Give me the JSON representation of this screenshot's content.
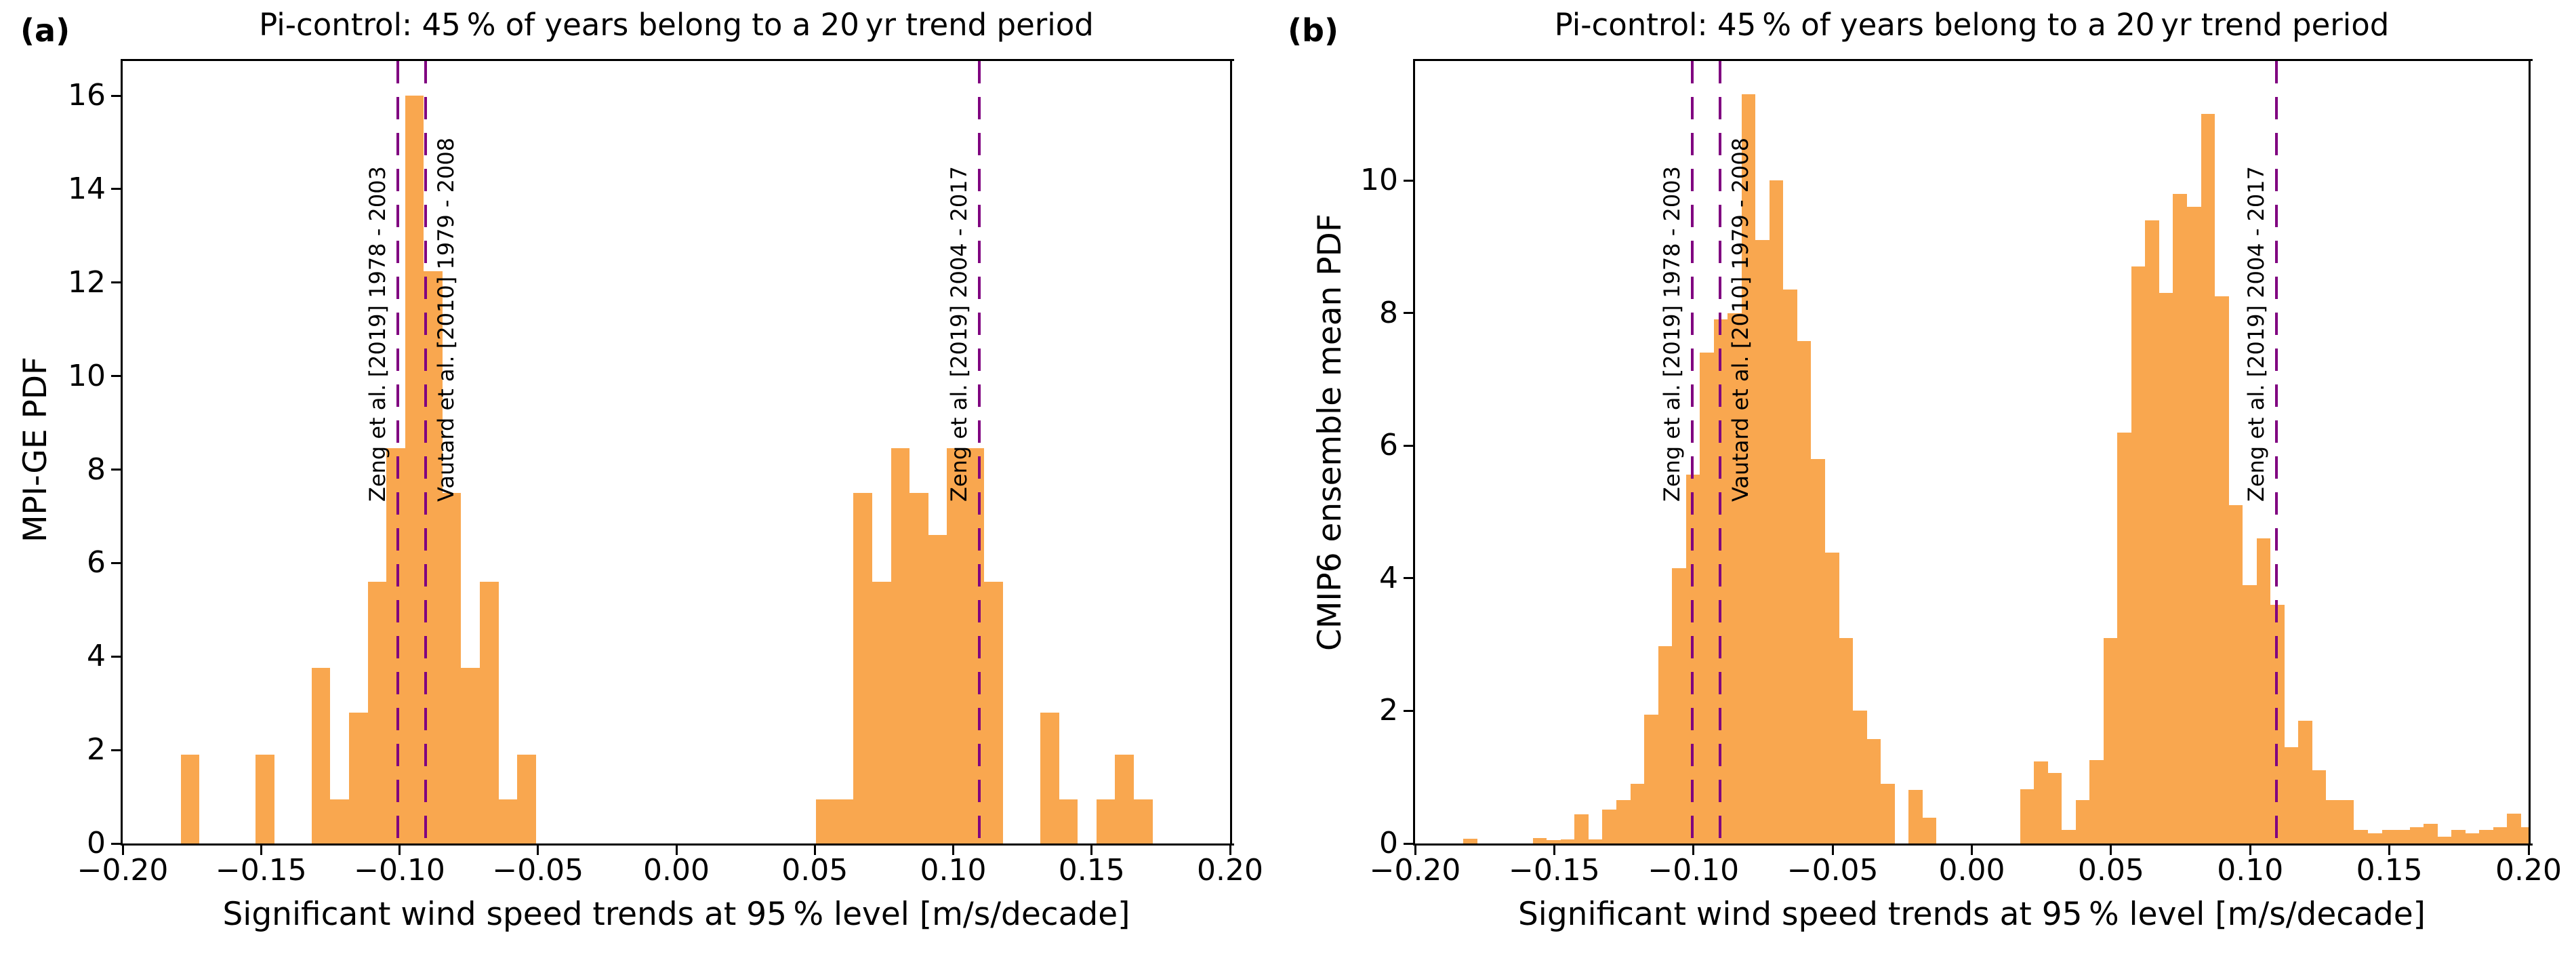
{
  "page": {
    "background": "#ffffff"
  },
  "colors": {
    "bar_fill": "#F9A74F",
    "vline": "#800080",
    "axis": "#000000",
    "text": "#000000"
  },
  "chart_data": [
    {
      "panel_label": "(a)",
      "type": "bar",
      "title": "Pi-control: 45 % of years belong to a 20 yr trend period",
      "xlabel": "Significant wind speed trends at 95 % level [m/s/decade]",
      "ylabel": "MPI-GE PDF",
      "xlim": [
        -0.2,
        0.2
      ],
      "ylim": [
        0,
        16.74
      ],
      "grid": false,
      "legend": null,
      "xticks": [
        -0.2,
        -0.15,
        -0.1,
        -0.05,
        0.0,
        0.05,
        0.1,
        0.15,
        0.2
      ],
      "xtick_labels": [
        "−0.20",
        "−0.15",
        "−0.10",
        "−0.05",
        "0.00",
        "0.05",
        "0.10",
        "0.15",
        "0.20"
      ],
      "yticks": [
        0,
        2,
        4,
        6,
        8,
        10,
        12,
        14,
        16
      ],
      "ytick_labels": [
        "0",
        "2",
        "4",
        "6",
        "8",
        "10",
        "12",
        "14",
        "16"
      ],
      "bin_width": 0.00675,
      "bars": [
        {
          "x": -0.179,
          "h": 1.9
        },
        {
          "x": -0.152,
          "h": 1.9
        },
        {
          "x": -0.13175,
          "h": 3.75
        },
        {
          "x": -0.125,
          "h": 0.95
        },
        {
          "x": -0.11825,
          "h": 2.8
        },
        {
          "x": -0.1115,
          "h": 5.6
        },
        {
          "x": -0.10475,
          "h": 8.45
        },
        {
          "x": -0.098,
          "h": 16.0
        },
        {
          "x": -0.09125,
          "h": 12.25
        },
        {
          "x": -0.0845,
          "h": 7.5
        },
        {
          "x": -0.07775,
          "h": 3.75
        },
        {
          "x": -0.071,
          "h": 5.6
        },
        {
          "x": -0.06425,
          "h": 0.95
        },
        {
          "x": -0.0575,
          "h": 1.9
        },
        {
          "x": 0.0505,
          "h": 0.95
        },
        {
          "x": 0.05725,
          "h": 0.95
        },
        {
          "x": 0.064,
          "h": 7.5
        },
        {
          "x": 0.07075,
          "h": 5.6
        },
        {
          "x": 0.0775,
          "h": 8.45
        },
        {
          "x": 0.08425,
          "h": 7.5
        },
        {
          "x": 0.091,
          "h": 6.6
        },
        {
          "x": 0.09775,
          "h": 8.45
        },
        {
          "x": 0.1045,
          "h": 8.45
        },
        {
          "x": 0.11125,
          "h": 5.6
        },
        {
          "x": 0.1315,
          "h": 2.8
        },
        {
          "x": 0.13825,
          "h": 0.95
        },
        {
          "x": 0.15175,
          "h": 0.95
        },
        {
          "x": 0.1585,
          "h": 1.9
        },
        {
          "x": 0.16525,
          "h": 0.95
        }
      ],
      "vlines": [
        {
          "x": -0.1005,
          "label": "Zeng et al. [2019] 1978 - 2003",
          "label_side": "left"
        },
        {
          "x": -0.0905,
          "label": "Vautard et al. [2010] 1979 - 2008",
          "label_side": "right"
        },
        {
          "x": 0.1095,
          "label": "Zeng et al. [2019] 2004 - 2017",
          "label_side": "left"
        }
      ]
    },
    {
      "panel_label": "(b)",
      "type": "bar",
      "title": "Pi-control: 45 % of years belong to a 20 yr trend period",
      "xlabel": "Significant wind speed trends at 95 % level [m/s/decade]",
      "ylabel": "CMIP6 ensemble mean PDF",
      "xlim": [
        -0.2,
        0.2
      ],
      "ylim": [
        0,
        11.8
      ],
      "grid": false,
      "legend": null,
      "xticks": [
        -0.2,
        -0.15,
        -0.1,
        -0.05,
        0.0,
        0.05,
        0.1,
        0.15,
        0.2
      ],
      "xtick_labels": [
        "−0.20",
        "−0.15",
        "−0.10",
        "−0.05",
        "0.00",
        "0.05",
        "0.10",
        "0.15",
        "0.20"
      ],
      "yticks": [
        0,
        2,
        4,
        6,
        8,
        10
      ],
      "ytick_labels": [
        "0",
        "2",
        "4",
        "6",
        "8",
        "10"
      ],
      "bin_width": 0.005,
      "bars": [
        {
          "x": -0.1827,
          "h": 0.07
        },
        {
          "x": -0.1577,
          "h": 0.08
        },
        {
          "x": -0.1527,
          "h": 0.05
        },
        {
          "x": -0.1477,
          "h": 0.06
        },
        {
          "x": -0.1427,
          "h": 0.44
        },
        {
          "x": -0.1377,
          "h": 0.06
        },
        {
          "x": -0.1327,
          "h": 0.51
        },
        {
          "x": -0.1277,
          "h": 0.65
        },
        {
          "x": -0.1227,
          "h": 0.9
        },
        {
          "x": -0.1177,
          "h": 1.94
        },
        {
          "x": -0.1127,
          "h": 2.98
        },
        {
          "x": -0.1077,
          "h": 4.15
        },
        {
          "x": -0.1027,
          "h": 5.56
        },
        {
          "x": -0.0977,
          "h": 7.4
        },
        {
          "x": -0.0927,
          "h": 7.9
        },
        {
          "x": -0.0877,
          "h": 8.0
        },
        {
          "x": -0.0827,
          "h": 11.3
        },
        {
          "x": -0.0777,
          "h": 9.1
        },
        {
          "x": -0.0727,
          "h": 10.0
        },
        {
          "x": -0.0677,
          "h": 8.35
        },
        {
          "x": -0.0627,
          "h": 7.58
        },
        {
          "x": -0.0577,
          "h": 5.8
        },
        {
          "x": -0.0527,
          "h": 4.39
        },
        {
          "x": -0.0477,
          "h": 3.1
        },
        {
          "x": -0.0427,
          "h": 2.0
        },
        {
          "x": -0.0377,
          "h": 1.57
        },
        {
          "x": -0.0327,
          "h": 0.9
        },
        {
          "x": -0.0227,
          "h": 0.81
        },
        {
          "x": -0.0177,
          "h": 0.39
        },
        {
          "x": 0.0173,
          "h": 0.82
        },
        {
          "x": 0.0223,
          "h": 1.24
        },
        {
          "x": 0.0273,
          "h": 1.06
        },
        {
          "x": 0.0323,
          "h": 0.2
        },
        {
          "x": 0.0373,
          "h": 0.65
        },
        {
          "x": 0.0423,
          "h": 1.26
        },
        {
          "x": 0.0473,
          "h": 3.1
        },
        {
          "x": 0.0523,
          "h": 6.2
        },
        {
          "x": 0.0573,
          "h": 8.7
        },
        {
          "x": 0.0623,
          "h": 9.4
        },
        {
          "x": 0.0673,
          "h": 8.3
        },
        {
          "x": 0.0723,
          "h": 9.8
        },
        {
          "x": 0.0773,
          "h": 9.6
        },
        {
          "x": 0.0823,
          "h": 11.0
        },
        {
          "x": 0.0873,
          "h": 8.25
        },
        {
          "x": 0.0923,
          "h": 5.1
        },
        {
          "x": 0.0973,
          "h": 3.9
        },
        {
          "x": 0.1023,
          "h": 4.6
        },
        {
          "x": 0.1073,
          "h": 3.6
        },
        {
          "x": 0.1123,
          "h": 1.45
        },
        {
          "x": 0.1173,
          "h": 1.85
        },
        {
          "x": 0.1223,
          "h": 1.1
        },
        {
          "x": 0.1273,
          "h": 0.65
        },
        {
          "x": 0.1323,
          "h": 0.65
        },
        {
          "x": 0.1373,
          "h": 0.2
        },
        {
          "x": 0.1423,
          "h": 0.15
        },
        {
          "x": 0.1473,
          "h": 0.2
        },
        {
          "x": 0.1523,
          "h": 0.2
        },
        {
          "x": 0.1573,
          "h": 0.25
        },
        {
          "x": 0.1623,
          "h": 0.3
        },
        {
          "x": 0.1673,
          "h": 0.1
        },
        {
          "x": 0.1723,
          "h": 0.2
        },
        {
          "x": 0.1773,
          "h": 0.15
        },
        {
          "x": 0.1823,
          "h": 0.2
        },
        {
          "x": 0.1873,
          "h": 0.25
        },
        {
          "x": 0.1923,
          "h": 0.45
        },
        {
          "x": 0.1973,
          "h": 0.25
        }
      ],
      "vlines": [
        {
          "x": -0.1005,
          "label": "Zeng et al. [2019] 1978 - 2003",
          "label_side": "left"
        },
        {
          "x": -0.0905,
          "label": "Vautard et al. [2010] 1979 - 2008",
          "label_side": "right"
        },
        {
          "x": 0.1095,
          "label": "Zeng et al. [2019] 2004 - 2017",
          "label_side": "left"
        }
      ]
    }
  ]
}
